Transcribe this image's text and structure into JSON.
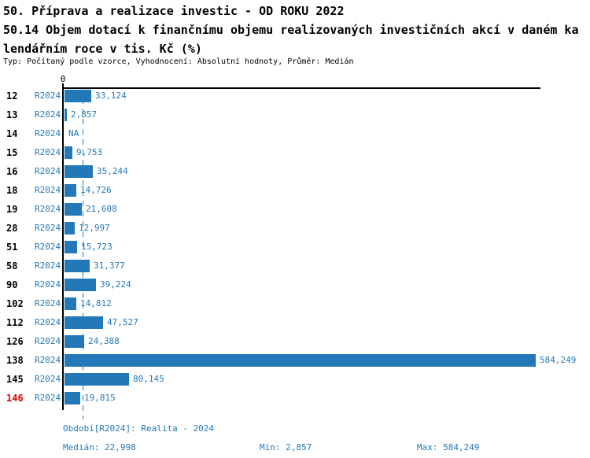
{
  "header": {
    "title": "50. Příprava a realizace investic - OD ROKU 2022",
    "subtitle_line1": "50.14 Objem dotací k finančnímu objemu realizovaných investičních akcí v daném ka",
    "subtitle_line2": "lendářním roce v tis. Kč (%)",
    "meta": "Typ: Počítaný podle vzorce, Vyhodnocení: Absolutní hodnoty, Průměr: Medián"
  },
  "chart_data": {
    "type": "bar",
    "orientation": "horizontal",
    "series_label": "R2024",
    "axis_zero_label": "0",
    "categories": [
      "12",
      "13",
      "14",
      "15",
      "16",
      "18",
      "19",
      "28",
      "51",
      "58",
      "90",
      "102",
      "112",
      "126",
      "138",
      "145",
      "146"
    ],
    "values": [
      33124,
      2857,
      null,
      9753,
      35244,
      14726,
      21608,
      12997,
      15723,
      31377,
      39224,
      14812,
      47527,
      24388,
      584249,
      80145,
      19815
    ],
    "value_labels": [
      "33,124",
      "2,857",
      "NA",
      "9,753",
      "35,244",
      "14,726",
      "21,608",
      "12,997",
      "15,723",
      "31,377",
      "39,224",
      "14,812",
      "47,527",
      "24,388",
      "584,249",
      "80,145",
      "19,815"
    ],
    "highlighted_categories": [
      "146"
    ],
    "xlim": [
      0,
      584249
    ],
    "median_value": 22998,
    "grid": false,
    "colors": {
      "bar": "#2478b8",
      "highlight": "#dd0000",
      "axis": "#000000"
    }
  },
  "footer": {
    "period": "Období[R2024]: Realita - 2024",
    "median": "Medián: 22,998",
    "min": "Min: 2,857",
    "max": "Max: 584,249"
  }
}
